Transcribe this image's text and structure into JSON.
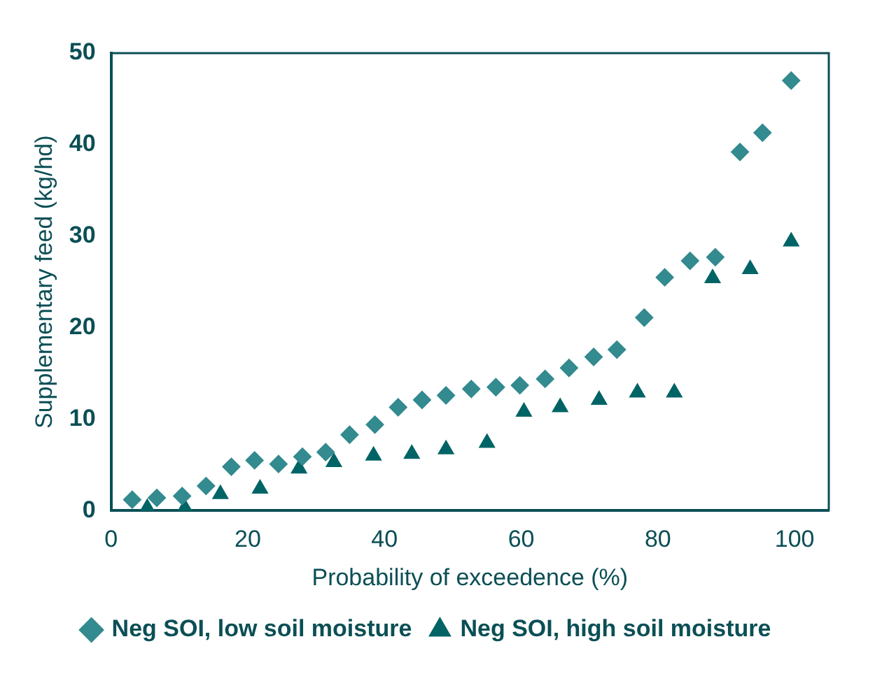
{
  "chart_data": {
    "type": "scatter",
    "xlabel": "Probability of exceedence (%)",
    "ylabel": "Supplementary feed (kg/hd)",
    "xlim": [
      0,
      105
    ],
    "xticks": [
      0,
      20,
      40,
      60,
      80,
      100
    ],
    "ylim": [
      0,
      50
    ],
    "yticks": [
      0,
      10,
      20,
      30,
      40,
      50
    ],
    "grid": false,
    "legend": "bottom",
    "series": [
      {
        "name": "Neg SOI, low soil moisture",
        "color": "#338a8f",
        "marker": "diamond",
        "x": [
          3.1,
          6.7,
          10.4,
          13.9,
          17.6,
          21,
          24.5,
          28,
          31.4,
          34.9,
          38.6,
          42,
          45.5,
          49,
          52.7,
          56.3,
          59.8,
          63.5,
          67,
          70.6,
          74,
          78,
          81,
          84.7,
          88.4,
          92,
          95.3,
          99.5
        ],
        "values": [
          1.2,
          1.4,
          1.6,
          2.7,
          4.8,
          5.5,
          5.1,
          5.9,
          6.4,
          8.3,
          9.4,
          11.3,
          12.1,
          12.6,
          13.3,
          13.5,
          13.7,
          14.4,
          15.6,
          16.8,
          17.6,
          21.1,
          25.5,
          27.3,
          27.7,
          39.2,
          41.3,
          47
        ]
      },
      {
        "name": "Neg SOI, high soil moisture",
        "color": "#006466",
        "marker": "triangle",
        "x": [
          5.3,
          10.8,
          16,
          21.8,
          27.5,
          32.6,
          38.4,
          44,
          49,
          55,
          60.4,
          65.7,
          71.4,
          77,
          82.4,
          88,
          93.5,
          99.5
        ],
        "values": [
          0.3,
          0.3,
          1.8,
          2.4,
          4.6,
          5.3,
          6,
          6.2,
          6.7,
          7.4,
          10.8,
          11.3,
          12.1,
          12.9,
          12.9,
          25.4,
          26.4,
          29.4
        ]
      }
    ]
  }
}
